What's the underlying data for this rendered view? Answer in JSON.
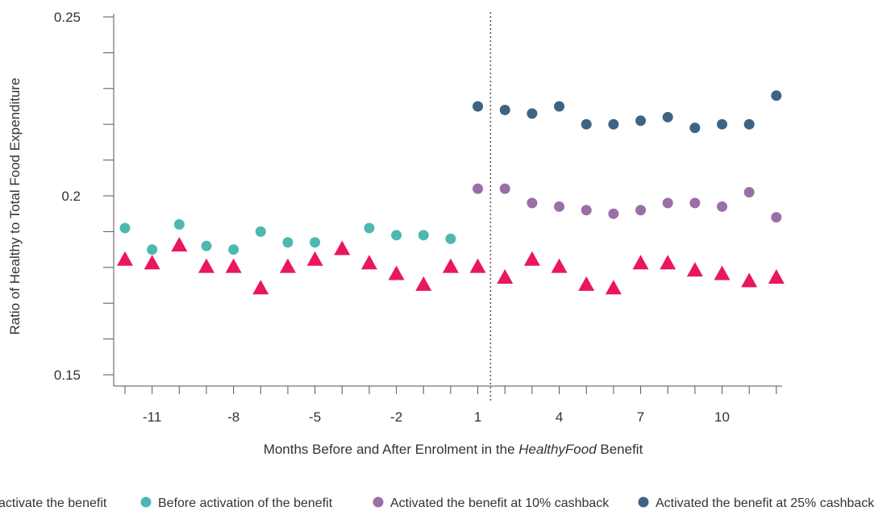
{
  "chart_data": {
    "type": "scatter",
    "xlabel_prefix": "Months Before and After Enrolment in the ",
    "xlabel_italic": "HealthyFood",
    "xlabel_suffix": " Benefit",
    "ylabel": "Ratio of Healthy to Total Food Expenditure",
    "ylim": [
      0.15,
      0.25
    ],
    "yticks": [
      "0.15",
      "0.2",
      "0.25"
    ],
    "xlim": [
      -12.5,
      12.5
    ],
    "xticks": [
      "-11",
      "-8",
      "-5",
      "-2",
      "1",
      "4",
      "7",
      "10"
    ],
    "xtick_values": [
      -11,
      -8,
      -5,
      -2,
      1,
      4,
      7,
      10
    ],
    "vline_x": 1.5,
    "grid": false,
    "legend_position": "bottom",
    "series": [
      {
        "name": "Did not activate the benefit",
        "legend_label": "activate the benefit",
        "marker": "triangle",
        "color": "#e8185a",
        "x": [
          -12,
          -11,
          -10,
          -9,
          -8,
          -7,
          -6,
          -5,
          -4,
          -3,
          -2,
          -1,
          0,
          1,
          2,
          3,
          4,
          5,
          6,
          7,
          8,
          9,
          10,
          11,
          12
        ],
        "y": [
          0.182,
          0.181,
          0.186,
          0.18,
          0.18,
          0.174,
          0.18,
          0.182,
          0.185,
          0.181,
          0.178,
          0.175,
          0.18,
          0.18,
          0.177,
          0.182,
          0.18,
          0.175,
          0.174,
          0.181,
          0.181,
          0.179,
          0.178,
          0.176,
          0.177
        ]
      },
      {
        "name": "Before activation of the benefit",
        "legend_label": "Before activation of the benefit",
        "marker": "circle",
        "color": "#4db8b0",
        "x": [
          -12,
          -11,
          -10,
          -9,
          -8,
          -7,
          -6,
          -5,
          -4,
          -3,
          -2,
          -1,
          0
        ],
        "y": [
          0.191,
          0.185,
          0.192,
          0.186,
          0.185,
          0.19,
          0.187,
          0.187,
          null,
          0.191,
          0.189,
          0.189,
          0.188
        ]
      },
      {
        "name": "Activated the benefit at 10% cashback",
        "legend_label": "Activated the benefit at 10% cashback",
        "marker": "circle",
        "color": "#9a6fa8",
        "x": [
          1,
          2,
          3,
          4,
          5,
          6,
          7,
          8,
          9,
          10,
          11,
          12
        ],
        "y": [
          0.202,
          0.202,
          0.198,
          0.197,
          0.196,
          0.195,
          0.196,
          0.198,
          0.198,
          0.197,
          0.201,
          0.194
        ]
      },
      {
        "name": "Activated the benefit at 25% cashback",
        "legend_label": "Activated the benefit at 25% cashback",
        "marker": "circle",
        "color": "#3e6484",
        "x": [
          1,
          2,
          3,
          4,
          5,
          6,
          7,
          8,
          9,
          10,
          11,
          12
        ],
        "y": [
          0.225,
          0.224,
          0.223,
          0.225,
          0.22,
          0.22,
          0.221,
          0.222,
          0.219,
          0.22,
          0.22,
          0.228
        ]
      }
    ]
  }
}
